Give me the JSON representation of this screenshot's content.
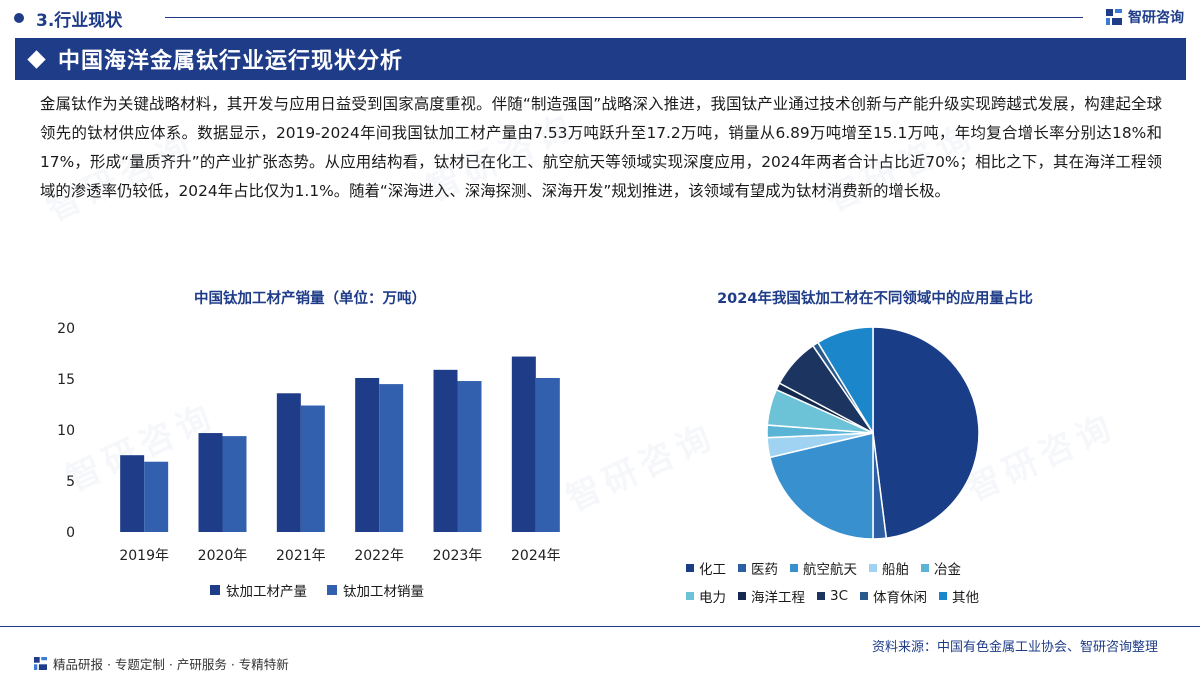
{
  "section": {
    "title": "3.行业现状"
  },
  "brand": {
    "name": "智研咨询",
    "icon": "zhiyan-logo-icon"
  },
  "banner": {
    "title": "中国海洋金属钛行业运行现状分析"
  },
  "intro": "金属钛作为关键战略材料，其开发与应用日益受到国家高度重视。伴随“制造强国”战略深入推进，我国钛产业通过技术创新与产能升级实现跨越式发展，构建起全球领先的钛材供应体系。数据显示，2019-2024年间我国钛加工材产量由7.53万吨跃升至17.2万吨，销量从6.89万吨增至15.1万吨，年均复合增长率分别达18%和17%，形成“量质齐升”的产业扩张态势。从应用结构看，钛材已在化工、航空航天等领域实现深度应用，2024年两者合计占比近70%；相比之下，其在海洋工程领域的渗透率仍较低，2024年占比仅为1.1%。随着“深海进入、深海探测、深海开发”规划推进，该领域有望成为钛材消费新的增长极。",
  "watermark": "智研咨询",
  "chart_data": [
    {
      "type": "bar",
      "title": "中国钛加工材产销量（单位：万吨）",
      "categories": [
        "2019年",
        "2020年",
        "2021年",
        "2022年",
        "2023年",
        "2024年"
      ],
      "series": [
        {
          "name": "钛加工材产量",
          "color": "#1f3c88",
          "values": [
            7.53,
            9.7,
            13.6,
            15.1,
            15.9,
            17.2
          ]
        },
        {
          "name": "钛加工材销量",
          "color": "#3360ae",
          "values": [
            6.89,
            9.4,
            12.4,
            14.5,
            14.8,
            15.1
          ]
        }
      ],
      "yticks": [
        "0",
        "5",
        "10",
        "15",
        "20"
      ],
      "ylim": [
        0,
        20
      ],
      "grid": false,
      "legend": "bottom"
    },
    {
      "type": "pie",
      "title": "2024年我国钛加工材在不同领域中的应用量占比",
      "start_angle_deg": 0,
      "direction": "clockwise",
      "slices": [
        {
          "label": "化工",
          "value": 48.0,
          "color": "#1a3d87"
        },
        {
          "label": "医药",
          "value": 2.0,
          "color": "#2e5ea3"
        },
        {
          "label": "航空航天",
          "value": 21.3,
          "color": "#3990cf"
        },
        {
          "label": "船舶",
          "value": 3.0,
          "color": "#9fd3f1"
        },
        {
          "label": "冶金",
          "value": 1.9,
          "color": "#5ab4d6"
        },
        {
          "label": "电力",
          "value": 5.5,
          "color": "#6cc3d8"
        },
        {
          "label": "海洋工程",
          "value": 1.1,
          "color": "#13294f"
        },
        {
          "label": "3C",
          "value": 7.6,
          "color": "#1b3560"
        },
        {
          "label": "体育休闲",
          "value": 0.9,
          "color": "#2a5a8c"
        },
        {
          "label": "其他",
          "value": 8.7,
          "color": "#1b86c9"
        }
      ],
      "legend": "bottom"
    }
  ],
  "source": "资料来源：中国有色金属工业协会、智研咨询整理",
  "footer": {
    "text": "精品研报 · 专题定制 · 产研服务 · 专精特新"
  }
}
